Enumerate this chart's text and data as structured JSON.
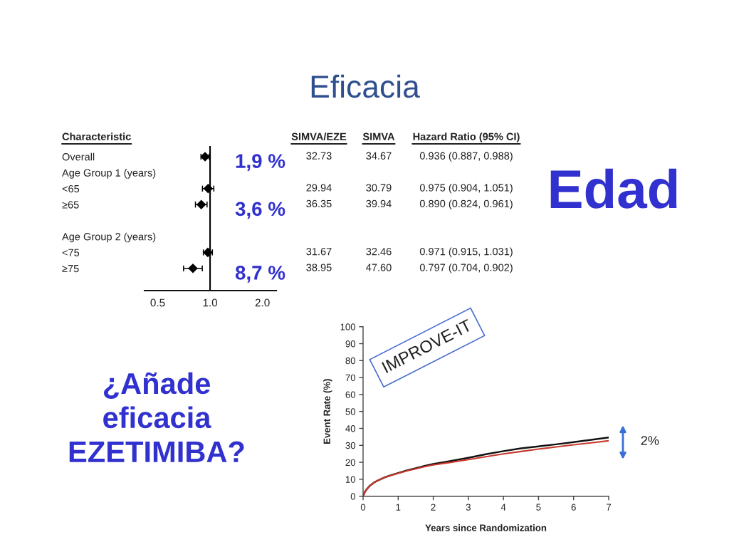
{
  "chart_data": [
    {
      "type": "other",
      "title": "Eficacia",
      "annotations": [
        "Edad",
        "¿Añade\neficacia\nEZETIMIBA?"
      ]
    },
    {
      "type": "scatter",
      "orientation": "horizontal",
      "ylabel": "Characteristic",
      "categories": [
        "Overall",
        "Age Group 1 (years)",
        "<65",
        "≥65",
        null,
        "Age Group 2 (years)",
        "<75",
        "≥75"
      ],
      "series": [
        {
          "name": "Hazard Ratio (95% CI)",
          "color": "#000000",
          "values": [
            0.936,
            null,
            0.975,
            0.89,
            null,
            null,
            0.971,
            0.797
          ],
          "errors": [
            [
              0.887,
              0.988
            ],
            null,
            [
              0.904,
              1.051
            ],
            [
              0.824,
              0.961
            ],
            null,
            null,
            [
              0.915,
              1.031
            ],
            [
              0.704,
              0.902
            ]
          ],
          "value_labels": [
            "0.936 (0.887, 0.988)",
            null,
            "0.975 (0.904, 1.051)",
            "0.890 (0.824, 0.961)",
            null,
            null,
            "0.971 (0.915, 1.031)",
            "0.797 (0.704, 0.902)"
          ]
        }
      ],
      "log": "x",
      "xlim": [
        0.42,
        2.4
      ],
      "xticks": [
        0.5,
        {
          "value": 1,
          "label": "1.0"
        },
        {
          "value": 2,
          "label": "2.0"
        }
      ],
      "marker": "diamond",
      "ref_lines": [
        {
          "axis": "x",
          "value": 1
        }
      ],
      "annotations": [
        "1,9 %",
        "3,6 %",
        "8,7 %",
        "SIMVA/EZE",
        "SIMVA",
        "32.73",
        "34.67",
        "29.94",
        "30.79",
        "36.35",
        "39.94",
        "31.67",
        "32.46",
        "38.95",
        "47.60"
      ]
    },
    {
      "type": "line",
      "xlabel": "Years since Randomization",
      "ylabel": "Event Rate (%)",
      "x": [
        0,
        0.05,
        0.1,
        0.2,
        0.3,
        0.4,
        0.6,
        0.8,
        1.0,
        1.25,
        1.5,
        1.75,
        2.0,
        2.5,
        3.0,
        3.5,
        4.0,
        4.5,
        5.0,
        5.5,
        6.0,
        6.5,
        7.0
      ],
      "series": [
        {
          "color": "#111111",
          "values": [
            0,
            2.5,
            4.0,
            6.3,
            7.9,
            9.1,
            11.0,
            12.4,
            13.7,
            15.2,
            16.5,
            17.8,
            19.0,
            20.8,
            22.7,
            24.8,
            26.6,
            28.2,
            29.4,
            30.6,
            31.9,
            33.3,
            34.6
          ]
        },
        {
          "color": "#c8382c",
          "values": [
            0,
            2.5,
            4.0,
            6.3,
            7.9,
            9.1,
            11.0,
            12.3,
            13.5,
            15.0,
            16.2,
            17.4,
            18.5,
            20.0,
            21.6,
            23.3,
            25.0,
            26.4,
            27.8,
            29.1,
            30.3,
            31.5,
            32.7
          ]
        }
      ],
      "xlim": [
        0,
        7
      ],
      "ylim": [
        0,
        100
      ],
      "xticks": [
        0,
        1,
        2,
        3,
        4,
        5,
        6,
        7
      ],
      "yticks": [
        0,
        10,
        20,
        30,
        40,
        50,
        60,
        70,
        80,
        90,
        100
      ],
      "annotations": [
        "IMPROVE-IT",
        "2%"
      ]
    }
  ]
}
